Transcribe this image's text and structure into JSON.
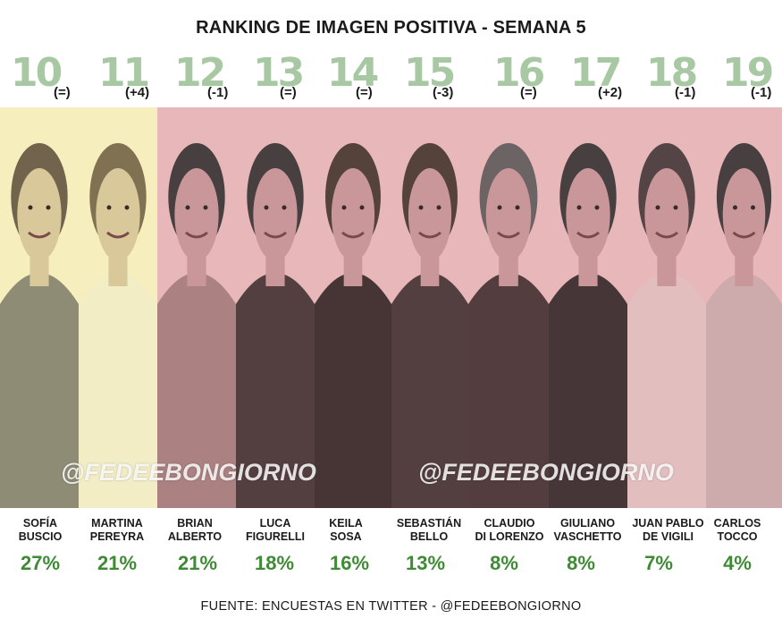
{
  "title": "RANKING DE IMAGEN POSITIVA - SEMANA 5",
  "watermark": "@FEDEEBONGIORNO",
  "source": "FUENTE: ENCUESTAS EN TWITTER - @FEDEEBONGIORNO",
  "colors": {
    "yellow_band": "#f6efbd",
    "pink_band": "#e8b7b9",
    "rank_green": "#a8c8a3",
    "percent_green": "#3f8a35"
  },
  "participants": [
    {
      "rank": "10",
      "change": "(=)",
      "name1": "SOFÍA",
      "name2": "BUSCIO",
      "percent": "27%",
      "value": 27
    },
    {
      "rank": "11",
      "change": "(+4)",
      "name1": "MARTINA",
      "name2": "PEREYRA",
      "percent": "21%",
      "value": 21
    },
    {
      "rank": "12",
      "change": "(-1)",
      "name1": "BRIAN",
      "name2": "ALBERTO",
      "percent": "21%",
      "value": 21
    },
    {
      "rank": "13",
      "change": "(=)",
      "name1": "LUCA",
      "name2": "FIGURELLI",
      "percent": "18%",
      "value": 18
    },
    {
      "rank": "14",
      "change": "(=)",
      "name1": "KEILA",
      "name2": "SOSA",
      "percent": "16%",
      "value": 16
    },
    {
      "rank": "15",
      "change": "(-3)",
      "name1": "SEBASTIÁN",
      "name2": "BELLO",
      "percent": "13%",
      "value": 13
    },
    {
      "rank": "16",
      "change": "(=)",
      "name1": "CLAUDIO",
      "name2": "DI LORENZO",
      "percent": "8%",
      "value": 8
    },
    {
      "rank": "17",
      "change": "(+2)",
      "name1": "GIULIANO",
      "name2": "VASCHETTO",
      "percent": "8%",
      "value": 8
    },
    {
      "rank": "18",
      "change": "(-1)",
      "name1": "JUAN PABLO",
      "name2": "DE VIGILI",
      "percent": "7%",
      "value": 7
    },
    {
      "rank": "19",
      "change": "(-1)",
      "name1": "CARLOS",
      "name2": "TOCCO",
      "percent": "4%",
      "value": 4
    }
  ]
}
